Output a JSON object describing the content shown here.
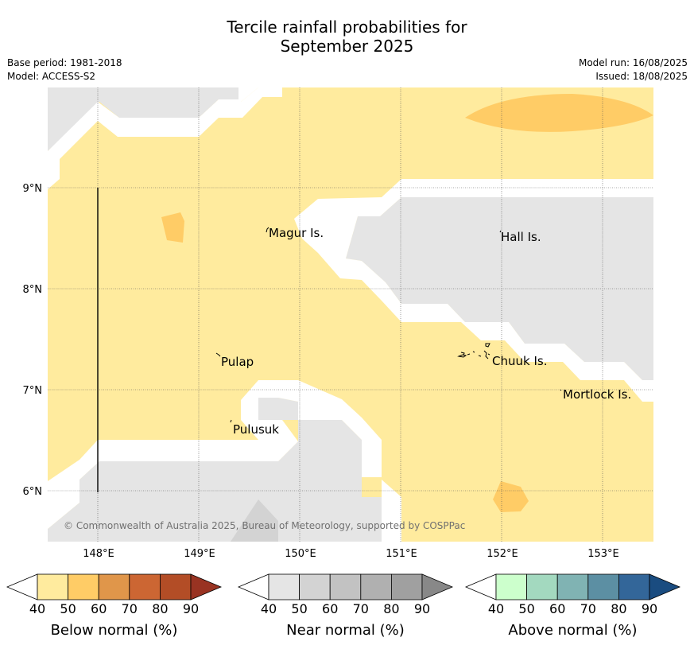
{
  "title_line1": "Tercile rainfall probabilities for",
  "title_line2": "September 2025",
  "meta": {
    "base_period": "Base period: 1981-2018",
    "model": "Model: ACCESS-S2",
    "model_run": "Model run: 16/08/2025",
    "issued": "Issued: 18/08/2025"
  },
  "map": {
    "lon_range": [
      147.5,
      153.5
    ],
    "lat_range": [
      5.5,
      10.0
    ],
    "lon_ticks": [
      "148°E",
      "149°E",
      "150°E",
      "151°E",
      "152°E",
      "153°E"
    ],
    "lat_ticks": [
      "9°N",
      "8°N",
      "7°N",
      "6°N"
    ],
    "places": [
      "Magur Is.",
      "Hall Is.",
      "Pulap",
      "Chuuk Is.",
      "Mortlock Is.",
      "Pulusuk"
    ],
    "copyright": "© Commonwealth of Australia 2025, Bureau of Meteorology, supported by COSPPac",
    "colors": {
      "below_40_50": "#ffeb9e",
      "below_50_60": "#ffcc66",
      "near_40_50": "#e5e5e5",
      "near_50_60": "#d3d3d3"
    }
  },
  "colorbars": [
    {
      "title": "Below normal (%)",
      "ticks": [
        "40",
        "50",
        "60",
        "70",
        "80",
        "90"
      ],
      "colors": [
        "#ffeb9e",
        "#ffcc66",
        "#e0964a",
        "#cc6633",
        "#b34d26",
        "#993322"
      ]
    },
    {
      "title": "Near normal (%)",
      "ticks": [
        "40",
        "50",
        "60",
        "70",
        "80",
        "90"
      ],
      "colors": [
        "#e5e5e5",
        "#d3d3d3",
        "#c2c2c2",
        "#b0b0b0",
        "#a0a0a0",
        "#888888"
      ]
    },
    {
      "title": "Above normal (%)",
      "ticks": [
        "40",
        "50",
        "60",
        "70",
        "80",
        "90"
      ],
      "colors": [
        "#ccffcc",
        "#a3d9bf",
        "#80b3b3",
        "#5c8fa3",
        "#336699",
        "#1a4c80"
      ]
    }
  ]
}
